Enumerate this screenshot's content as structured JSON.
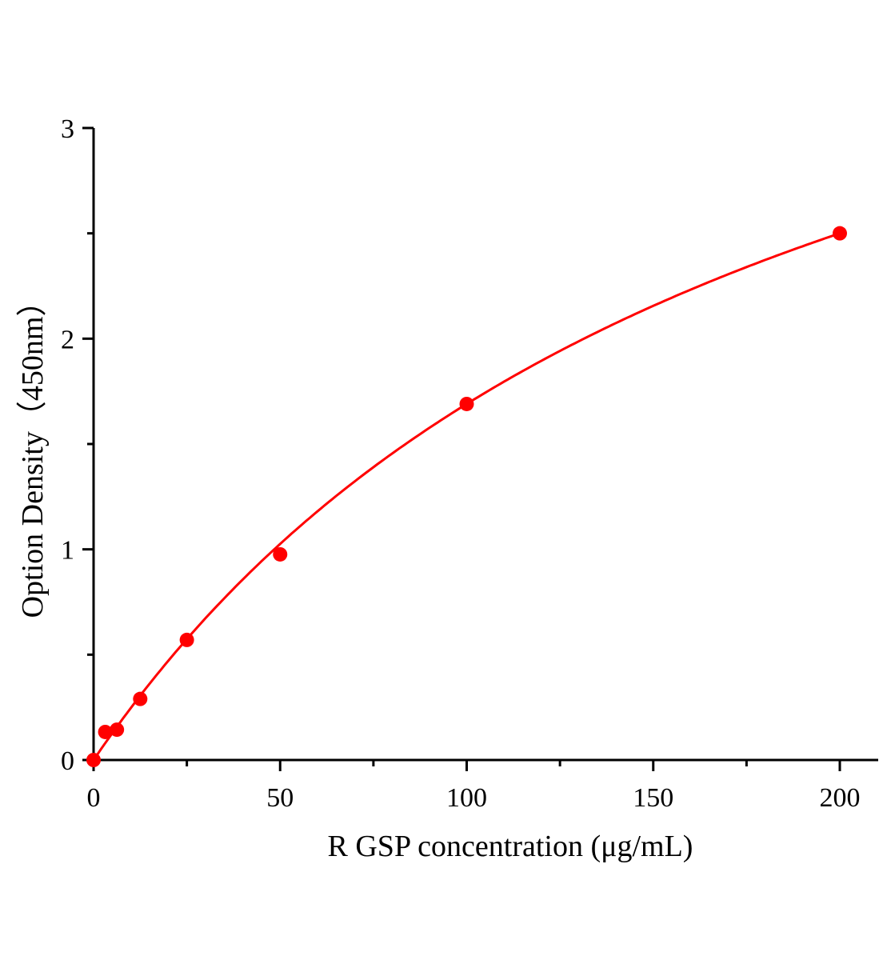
{
  "chart_data": {
    "type": "scatter",
    "title": "",
    "xlabel": "R GSP concentration (μg/mL)",
    "ylabel": "Option Density（450nm）",
    "xlim": [
      0,
      210
    ],
    "ylim": [
      0,
      3
    ],
    "x_ticks": [
      "0",
      "50",
      "100",
      "150",
      "200"
    ],
    "y_ticks": [
      "0",
      "1",
      "2",
      "3"
    ],
    "grid": false,
    "legend": "none",
    "color": "#ff0000",
    "fit_line": true,
    "series": [
      {
        "x": [
          0,
          3.125,
          6.25,
          12.5,
          25,
          50,
          100,
          200
        ],
        "y": [
          0,
          0.133,
          0.144,
          0.29,
          0.57,
          0.976,
          1.69,
          2.5
        ]
      }
    ]
  }
}
